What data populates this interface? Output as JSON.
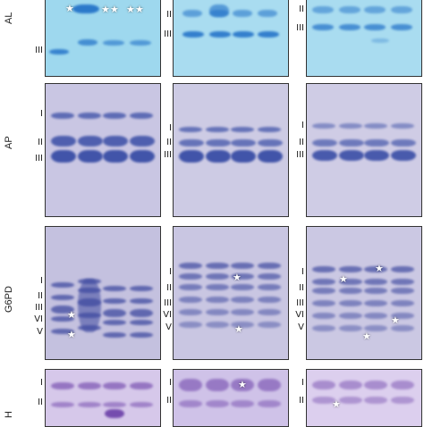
{
  "row_labels": [
    "AL",
    "AP",
    "G6PD",
    "H"
  ],
  "colors": {
    "al_bg": "#9ed8ee",
    "al_band": "#1f6fc7",
    "ap_bg": "#c9c6e3",
    "ap_band": "#3a4ea6",
    "g6pd_bg": "#c4c1df",
    "g6pd_band": "#3f4aa0",
    "h_bg": "#d6c8ea",
    "h_band": "#6b3fa8"
  },
  "band_labels": {
    "al_p1": [
      "III"
    ],
    "al_p2": [
      "II",
      "III"
    ],
    "al_p3": [
      "II",
      "III"
    ],
    "ap_p1": [
      "I",
      "II",
      "III"
    ],
    "ap_p2": [
      "I",
      "II",
      "III"
    ],
    "ap_p3": [
      "I",
      "II",
      "III"
    ],
    "g6pd_p1": [
      "I",
      "II",
      "III",
      "VI",
      "V"
    ],
    "g6pd_p2": [
      "I",
      "II",
      "III",
      "VI",
      "V"
    ],
    "g6pd_p3": [
      "I",
      "II",
      "III",
      "VI",
      "V"
    ],
    "h_p1": [
      "I",
      "II"
    ],
    "h_p2": [
      "I",
      "II"
    ],
    "h_p3": [
      "I",
      "II"
    ]
  },
  "star_glyph": "★"
}
